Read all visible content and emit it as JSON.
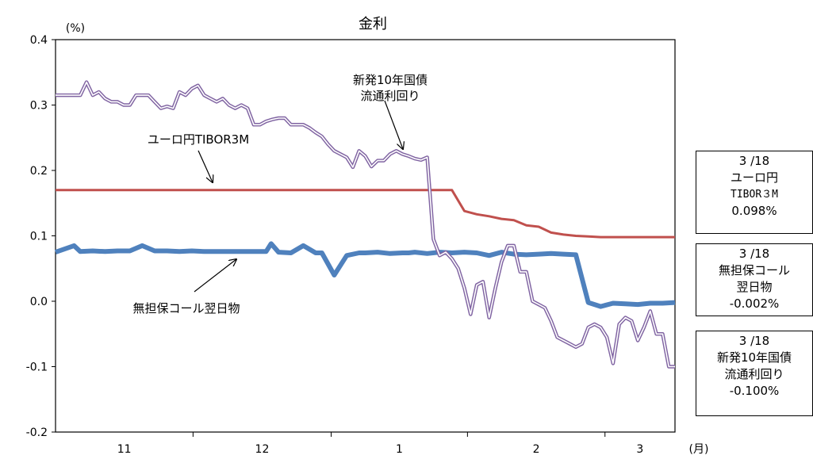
{
  "chart_data": {
    "type": "line",
    "title": "金利",
    "ylabel": "(%)",
    "xlabel": "(月)",
    "ylim": [
      -0.2,
      0.4
    ],
    "yticks": [
      "0.4",
      "0.3",
      "0.2",
      "0.1",
      "0.0",
      "-0.1",
      "-0.2"
    ],
    "yticks_values": [
      0.4,
      0.3,
      0.2,
      0.1,
      0.0,
      -0.1,
      -0.2
    ],
    "xtick_labels": [
      "11",
      "12",
      "1",
      "2",
      "3"
    ],
    "x_count": 100,
    "series": [
      {
        "key": "tibor",
        "color": "#c0504d",
        "style": "solid",
        "x": [
          0,
          60,
          64,
          66,
          68,
          70,
          72,
          74,
          76,
          77,
          78,
          80,
          82,
          84,
          86,
          88,
          90,
          92,
          94,
          96,
          98,
          100
        ],
        "values": [
          0.17,
          0.17,
          0.17,
          0.138,
          0.133,
          0.13,
          0.126,
          0.124,
          0.116,
          0.115,
          0.114,
          0.105,
          0.102,
          0.1,
          0.099,
          0.098,
          0.098,
          0.098,
          0.098,
          0.098,
          0.098,
          0.098
        ]
      },
      {
        "key": "call",
        "color": "#4f81bd",
        "style": "thick",
        "x": [
          0,
          3,
          4,
          6,
          8,
          10,
          12,
          14,
          16,
          18,
          20,
          22,
          24,
          26,
          28,
          30,
          32,
          34,
          34.8,
          36,
          38,
          40,
          42,
          43,
          45,
          47,
          49,
          50,
          52,
          54,
          56,
          57,
          58,
          60,
          62,
          64,
          66,
          68,
          70,
          72,
          74,
          76,
          78,
          80,
          82,
          84,
          86,
          88,
          90,
          92,
          94,
          96,
          98,
          100
        ],
        "values": [
          0.075,
          0.085,
          0.076,
          0.077,
          0.076,
          0.077,
          0.077,
          0.085,
          0.077,
          0.077,
          0.076,
          0.077,
          0.076,
          0.076,
          0.076,
          0.076,
          0.076,
          0.076,
          0.088,
          0.075,
          0.074,
          0.085,
          0.074,
          0.074,
          0.04,
          0.07,
          0.074,
          0.074,
          0.075,
          0.073,
          0.074,
          0.074,
          0.075,
          0.073,
          0.075,
          0.074,
          0.075,
          0.074,
          0.07,
          0.075,
          0.072,
          0.071,
          0.072,
          0.073,
          0.072,
          0.071,
          -0.002,
          -0.008,
          -0.003,
          -0.004,
          -0.005,
          -0.003,
          -0.003,
          -0.002
        ]
      },
      {
        "key": "jgb",
        "color": "#8064a2",
        "style": "double",
        "x": [
          0,
          4,
          5,
          6,
          7,
          8,
          9,
          10,
          11,
          12,
          13,
          14,
          15,
          16,
          17,
          18,
          19,
          20,
          21,
          22,
          23,
          24,
          25,
          26,
          27,
          28,
          29,
          30,
          31,
          32,
          33,
          34,
          35,
          36,
          37,
          38,
          39,
          40,
          41,
          42,
          43,
          44,
          45,
          46,
          47,
          48,
          49,
          50,
          51,
          52,
          53,
          54,
          55,
          56,
          57,
          58,
          59,
          60,
          61,
          62,
          63,
          64,
          65,
          66,
          67,
          68,
          69,
          70,
          71,
          72,
          73,
          74,
          75,
          76,
          77,
          78,
          79,
          80,
          81,
          82,
          83,
          84,
          85,
          86,
          87,
          88,
          89,
          90,
          91,
          92,
          93,
          94,
          95,
          96,
          97,
          98,
          99,
          100
        ],
        "values": [
          0.315,
          0.315,
          0.335,
          0.315,
          0.32,
          0.31,
          0.305,
          0.305,
          0.3,
          0.3,
          0.315,
          0.315,
          0.315,
          0.305,
          0.295,
          0.298,
          0.295,
          0.32,
          0.315,
          0.325,
          0.33,
          0.315,
          0.31,
          0.305,
          0.31,
          0.3,
          0.295,
          0.3,
          0.295,
          0.27,
          0.27,
          0.275,
          0.278,
          0.28,
          0.28,
          0.27,
          0.27,
          0.27,
          0.265,
          0.258,
          0.252,
          0.24,
          0.23,
          0.225,
          0.22,
          0.205,
          0.23,
          0.222,
          0.206,
          0.215,
          0.215,
          0.225,
          0.23,
          0.225,
          0.222,
          0.218,
          0.216,
          0.22,
          0.095,
          0.07,
          0.075,
          0.065,
          0.05,
          0.02,
          -0.02,
          0.025,
          0.03,
          -0.025,
          0.02,
          0.06,
          0.085,
          0.085,
          0.045,
          0.045,
          0.0,
          -0.005,
          -0.01,
          -0.03,
          -0.055,
          -0.06,
          -0.065,
          -0.07,
          -0.065,
          -0.04,
          -0.035,
          -0.04,
          -0.055,
          -0.095,
          -0.035,
          -0.025,
          -0.03,
          -0.06,
          -0.04,
          -0.015,
          -0.05,
          -0.05,
          -0.1,
          -0.1
        ]
      }
    ],
    "annotations": [
      {
        "key": "jgb_label",
        "lines": [
          "新発10年国債",
          "流通利回り"
        ]
      },
      {
        "key": "tibor_label",
        "lines": [
          "ユーロ円TIBOR3M"
        ]
      },
      {
        "key": "call_label",
        "lines": [
          "無担保コール翌日物"
        ]
      }
    ]
  },
  "side_boxes": [
    {
      "date": "3 /18",
      "name": "ユーロ円",
      "sub": "TIBOR３M",
      "value": "0.098%"
    },
    {
      "date": "3 /18",
      "name": "無担保コール",
      "sub": "翌日物",
      "value": "-0.002%"
    },
    {
      "date": "3 /18",
      "name": "新発10年国債",
      "sub": "流通利回り",
      "value": "-0.100%"
    }
  ]
}
